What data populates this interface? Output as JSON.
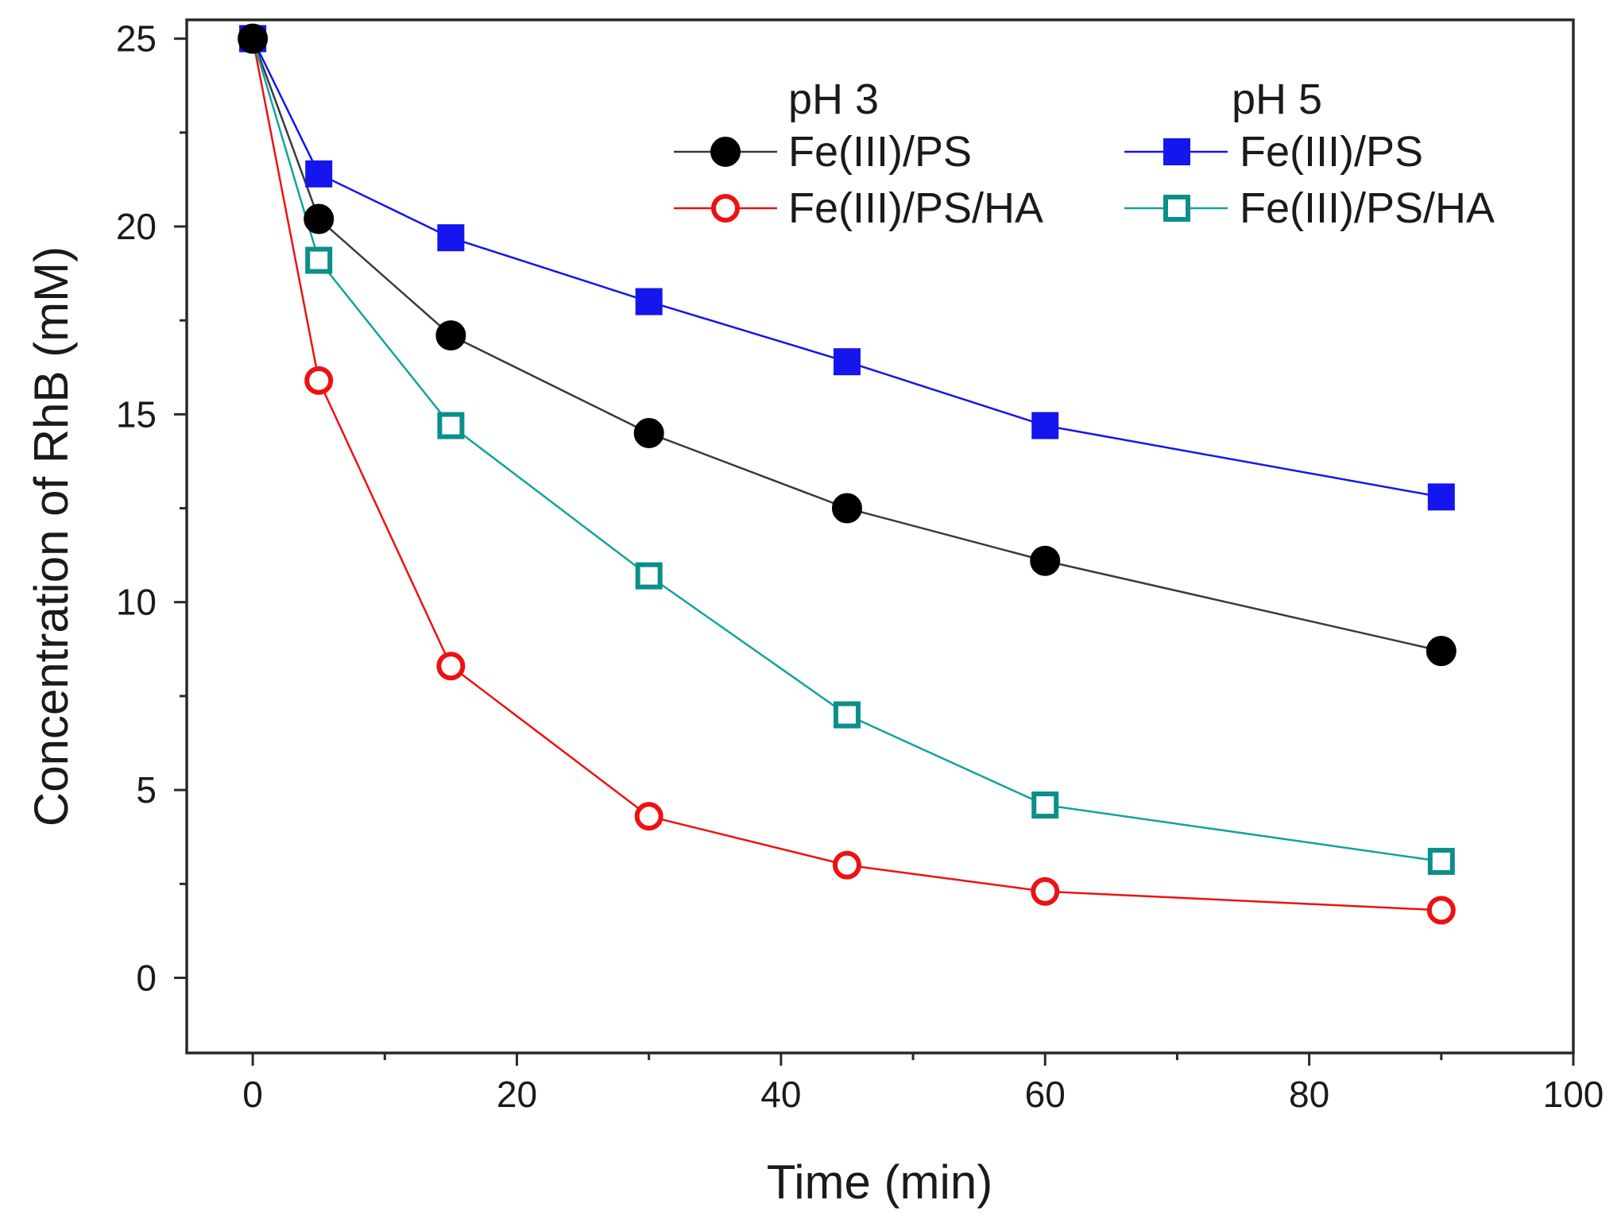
{
  "chart_data": {
    "type": "line",
    "title": "",
    "xlabel": "Time (min)",
    "ylabel": "Concentration of RhB (mM)",
    "xlim": [
      -5,
      100
    ],
    "ylim": [
      -2,
      25.5
    ],
    "x_ticks": [
      0,
      20,
      40,
      60,
      80,
      100
    ],
    "y_ticks": [
      0,
      5,
      10,
      15,
      20,
      25
    ],
    "x_tick_labels": [
      "0",
      "20",
      "40",
      "60",
      "80",
      "100"
    ],
    "y_tick_labels": [
      "0",
      "5",
      "10",
      "15",
      "20",
      "25"
    ],
    "x": [
      0,
      5,
      15,
      30,
      45,
      60,
      90
    ],
    "legend_groups": [
      "pH 3",
      "pH 5"
    ],
    "series": [
      {
        "name": "Fe(III)/PS",
        "group": "pH 3",
        "marker": "filled-circle",
        "color": "#000000",
        "line_color": "#3a3a3a",
        "values": [
          25,
          20.2,
          17.1,
          14.5,
          12.5,
          11.1,
          8.7
        ]
      },
      {
        "name": "Fe(III)/PS/HA",
        "group": "pH 3",
        "marker": "open-circle",
        "color": "#ee1111",
        "line_color": "#ee1111",
        "values": [
          25,
          15.9,
          8.3,
          4.3,
          3.0,
          2.3,
          1.8
        ]
      },
      {
        "name": "Fe(III)/PS",
        "group": "pH 5",
        "marker": "filled-square",
        "color": "#1515ee",
        "line_color": "#1515ee",
        "values": [
          25,
          21.4,
          19.7,
          18.0,
          16.4,
          14.7,
          12.8
        ]
      },
      {
        "name": "Fe(III)/PS/HA",
        "group": "pH 5",
        "marker": "open-square",
        "color": "#0b8f8a",
        "line_color": "#12a39d",
        "values": [
          25,
          19.1,
          14.7,
          10.7,
          7.0,
          4.6,
          3.1
        ]
      }
    ],
    "grid": false,
    "legend_position": "top-right"
  }
}
